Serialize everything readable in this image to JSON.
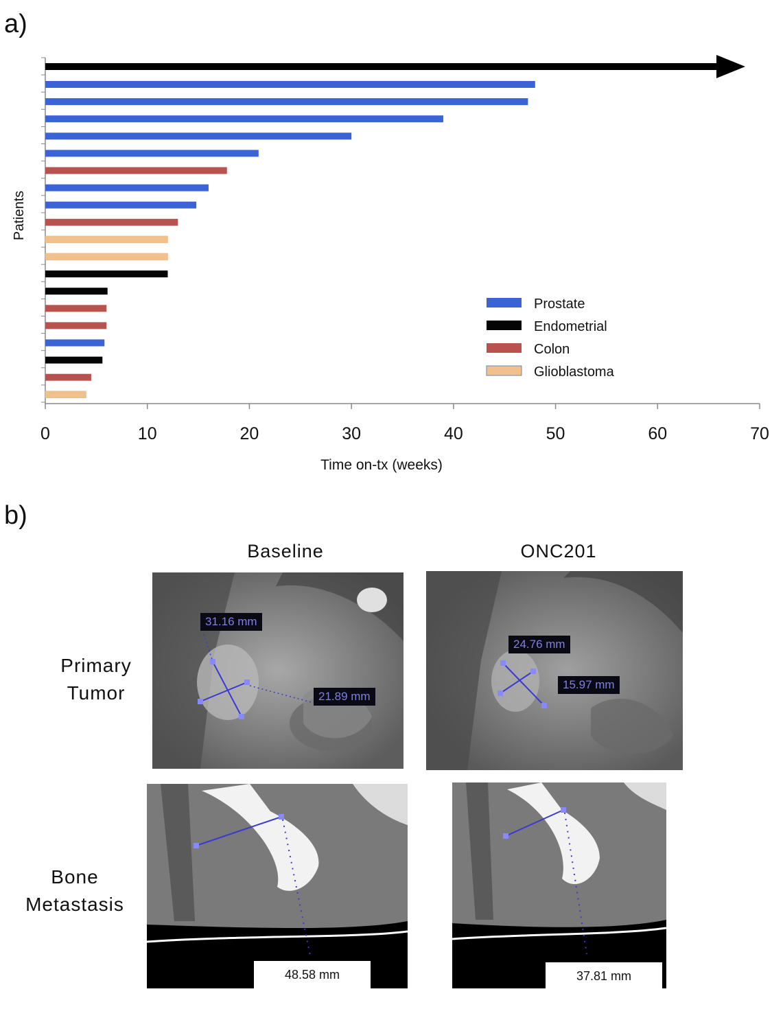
{
  "panel_a_label": "a)",
  "panel_b_label": "b)",
  "chart_data": {
    "type": "bar",
    "orientation": "horizontal",
    "ylabel": "Patients",
    "xlabel": "Time on-tx (weeks)",
    "xlim": [
      0,
      70
    ],
    "xticks": [
      0,
      10,
      20,
      30,
      40,
      50,
      60,
      70
    ],
    "ongoing_arrow": true,
    "legend_position": "bottom-right",
    "legend": [
      {
        "name": "Prostate",
        "color": "#3a63d6"
      },
      {
        "name": "Endometrial",
        "color": "#050505"
      },
      {
        "name": "Colon",
        "color": "#b8524f"
      },
      {
        "name": "Glioblastoma",
        "color": "#f0c08e"
      }
    ],
    "bars": [
      {
        "value": 48,
        "type": "Prostate"
      },
      {
        "value": 47.3,
        "type": "Prostate"
      },
      {
        "value": 39,
        "type": "Prostate"
      },
      {
        "value": 30,
        "type": "Prostate"
      },
      {
        "value": 20.9,
        "type": "Prostate"
      },
      {
        "value": 17.8,
        "type": "Colon"
      },
      {
        "value": 16,
        "type": "Prostate"
      },
      {
        "value": 14.8,
        "type": "Prostate"
      },
      {
        "value": 13,
        "type": "Colon"
      },
      {
        "value": 12,
        "type": "Glioblastoma"
      },
      {
        "value": 12,
        "type": "Glioblastoma"
      },
      {
        "value": 12,
        "type": "Endometrial"
      },
      {
        "value": 6.1,
        "type": "Endometrial"
      },
      {
        "value": 6,
        "type": "Colon"
      },
      {
        "value": 6,
        "type": "Colon"
      },
      {
        "value": 5.8,
        "type": "Prostate"
      },
      {
        "value": 5.6,
        "type": "Endometrial"
      },
      {
        "value": 4.5,
        "type": "Colon"
      },
      {
        "value": 4,
        "type": "Glioblastoma"
      }
    ]
  },
  "panel_b": {
    "col_baseline": "Baseline",
    "col_treatment": "ONC201",
    "row_primary": "Primary\nTumor",
    "row_bone": "Bone\nMetastasis",
    "primary_baseline": {
      "long": "31.16 mm",
      "short": "21.89 mm"
    },
    "primary_onc201": {
      "long": "24.76 mm",
      "short": "15.97 mm"
    },
    "bone_baseline": "48.58 mm",
    "bone_onc201": "37.81 mm"
  }
}
